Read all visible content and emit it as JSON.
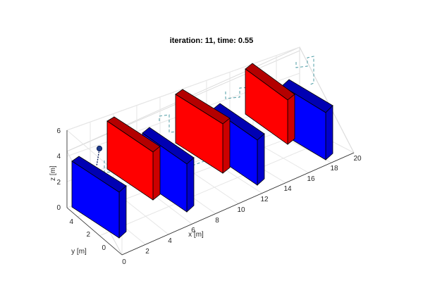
{
  "title": "iteration: 11, time: 0.55",
  "axes": {
    "x_label": "x [m]",
    "y_label": "y [m]",
    "z_label": "z [m]",
    "x_ticks": [
      "0",
      "2",
      "4",
      "6",
      "8",
      "10",
      "12",
      "14",
      "16",
      "18",
      "20"
    ],
    "y_ticks": [
      "0",
      "2",
      "4"
    ],
    "z_ticks": [
      "0",
      "2",
      "4",
      "6"
    ],
    "x_range": [
      0,
      20
    ],
    "y_range": [
      0,
      5
    ],
    "z_range": [
      0,
      6
    ],
    "grid": true
  },
  "colors": {
    "red_block": "#ff0000",
    "red_block_top": "#b30000",
    "red_block_side": "#cc0000",
    "blue_block": "#0000ff",
    "blue_block_top": "#0000b3",
    "blue_block_side": "#0000cc",
    "path": "#4f9da6",
    "trajectory": "#0b1f5c",
    "agent": "#1f3b8c"
  }
}
